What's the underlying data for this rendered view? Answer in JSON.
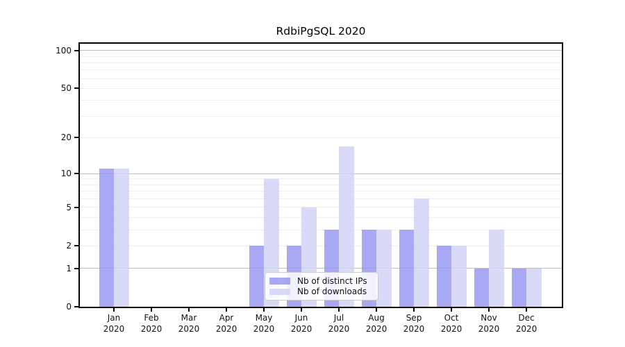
{
  "title": "RdbiPgSQL 2020",
  "chart_data": {
    "type": "bar",
    "title": "RdbiPgSQL 2020",
    "categories": [
      "Jan",
      "Feb",
      "Mar",
      "Apr",
      "May",
      "Jun",
      "Jul",
      "Aug",
      "Sep",
      "Oct",
      "Nov",
      "Dec"
    ],
    "year": "2020",
    "series": [
      {
        "name": "Nb of distinct IPs",
        "color": "rgba(146,146,242,0.8)",
        "solid_color": "#a8a8f4",
        "values": [
          11,
          0,
          0,
          0,
          2,
          2,
          3,
          3,
          3,
          2,
          1,
          1
        ]
      },
      {
        "name": "Nb of downloads",
        "color": "rgba(208,208,246,0.8)",
        "solid_color": "#d9d9f8",
        "values": [
          11,
          0,
          0,
          0,
          9,
          5,
          17,
          3,
          6,
          2,
          3,
          1
        ]
      }
    ],
    "xlabel": "",
    "ylabel": "",
    "yscale": "log1p",
    "ylim": [
      0,
      113
    ],
    "y_ticks": [
      0,
      1,
      2,
      5,
      10,
      20,
      50,
      100
    ],
    "y_tick_labels": [
      "0",
      "1",
      "2",
      "5",
      "10",
      "20",
      "50",
      "100"
    ],
    "y_major_gridlines": [
      1,
      10,
      100
    ],
    "y_minor_gridlines": [
      2,
      3,
      4,
      5,
      6,
      7,
      8,
      9,
      20,
      30,
      40,
      50,
      60,
      70,
      80,
      90
    ],
    "grid": "on",
    "legend_position": "lower-center-inside",
    "colors": {
      "axis": "#000000",
      "major_grid": "#bdbdbd",
      "minor_grid": "#ededed",
      "text": "#111111",
      "background": "#ffffff"
    }
  }
}
